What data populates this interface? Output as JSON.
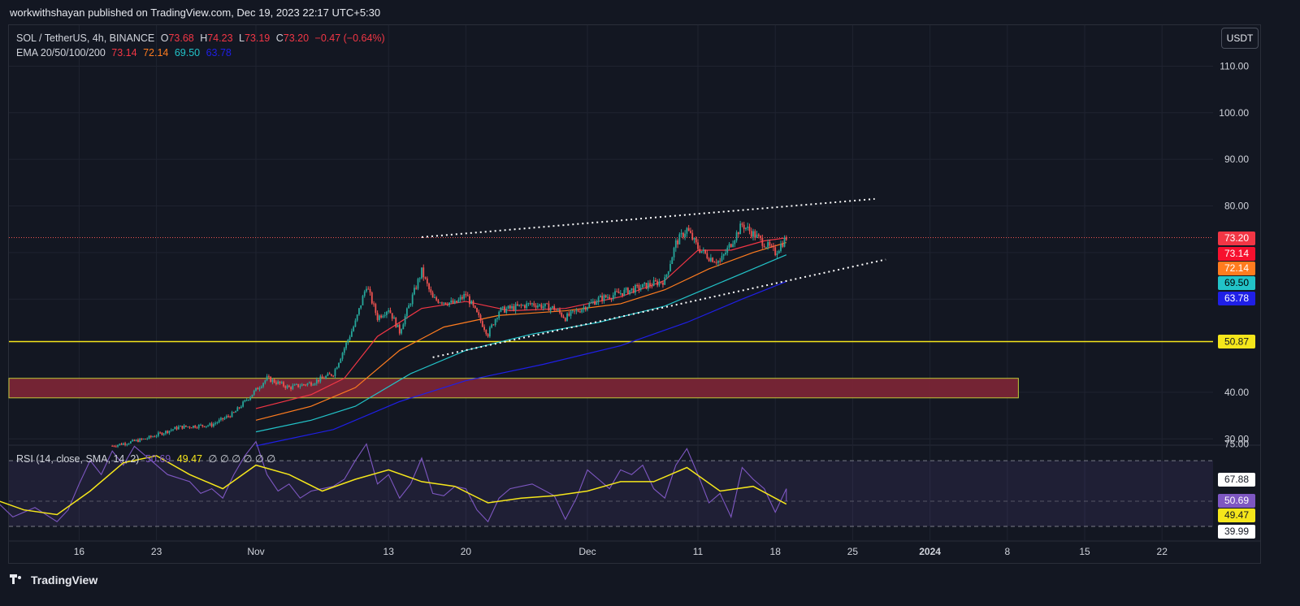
{
  "header": {
    "publisher": "workwithshayan published on TradingView.com, Dec 19, 2023 22:17 UTC+5:30"
  },
  "legend": {
    "symbol": "SOL / TetherUS, 4h, BINANCE",
    "o_label": "O",
    "o_value": "73.68",
    "h_label": "H",
    "h_value": "74.23",
    "l_label": "L",
    "l_value": "73.19",
    "c_label": "C",
    "c_value": "73.20",
    "change": "−0.47 (−0.64%)",
    "ema_label": "EMA 20/50/100/200",
    "ema20": "73.14",
    "ema50": "72.14",
    "ema100": "69.50",
    "ema200": "63.78",
    "rsi_label": "RSI (14, close, SMA, 14, 2)",
    "rsi_value": "50.69",
    "rsi_sma_value": "49.47",
    "rsi_placeholders": "∅ ∅ ∅ ∅ ∅ ∅"
  },
  "toolbar": {
    "currency_button": "USDT"
  },
  "footer": {
    "brand": "TradingView"
  },
  "colors": {
    "background": "#131722",
    "up": "#26a69a",
    "down": "#ef5350",
    "ema20": "#f23645",
    "ema50": "#ff7c1f",
    "ema100": "#22c3c8",
    "ema200": "#1f1fe6",
    "support_line": "#f5e61b",
    "zone_fill": "#7a2536",
    "rsi": "#7e57c2",
    "rsi_sma": "#f5e61b"
  },
  "chart_data": [
    {
      "type": "candlestick",
      "title": "SOL / TetherUS, 4h, BINANCE",
      "ylim": [
        28,
        118
      ],
      "y_ticks": [
        "110.00",
        "100.00",
        "90.00",
        "80.00",
        "40.00",
        "30.00"
      ],
      "x_ticks": [
        "16",
        "23",
        "Nov",
        "13",
        "20",
        "Dec",
        "11",
        "18",
        "25",
        "2024",
        "8",
        "15",
        "22"
      ],
      "last_price": "73.20",
      "ohlc_last": {
        "open": 73.68,
        "high": 74.23,
        "low": 73.19,
        "close": 73.2,
        "change": -0.47,
        "change_pct": -0.64
      },
      "price_path": [
        {
          "date": "2023-10-19",
          "price": 28.5
        },
        {
          "date": "2023-10-22",
          "price": 30.0
        },
        {
          "date": "2023-10-25",
          "price": 32.5
        },
        {
          "date": "2023-10-28",
          "price": 33.0
        },
        {
          "date": "2023-10-30",
          "price": 35.5
        },
        {
          "date": "2023-11-01",
          "price": 40.5
        },
        {
          "date": "2023-11-02",
          "price": 43.0
        },
        {
          "date": "2023-11-04",
          "price": 41.0
        },
        {
          "date": "2023-11-06",
          "price": 42.0
        },
        {
          "date": "2023-11-08",
          "price": 44.0
        },
        {
          "date": "2023-11-10",
          "price": 55.0
        },
        {
          "date": "2023-11-11",
          "price": 63.0
        },
        {
          "date": "2023-11-12",
          "price": 56.0
        },
        {
          "date": "2023-11-13",
          "price": 58.0
        },
        {
          "date": "2023-11-14",
          "price": 53.0
        },
        {
          "date": "2023-11-16",
          "price": 66.0
        },
        {
          "date": "2023-11-17",
          "price": 60.0
        },
        {
          "date": "2023-11-19",
          "price": 59.0
        },
        {
          "date": "2023-11-20",
          "price": 61.0
        },
        {
          "date": "2023-11-22",
          "price": 52.5
        },
        {
          "date": "2023-11-23",
          "price": 57.5
        },
        {
          "date": "2023-11-26",
          "price": 59.0
        },
        {
          "date": "2023-11-28",
          "price": 58.0
        },
        {
          "date": "2023-11-29",
          "price": 56.0
        },
        {
          "date": "2023-12-02",
          "price": 60.0
        },
        {
          "date": "2023-12-05",
          "price": 62.0
        },
        {
          "date": "2023-12-08",
          "price": 64.0
        },
        {
          "date": "2023-12-09",
          "price": 72.0
        },
        {
          "date": "2023-12-10",
          "price": 75.0
        },
        {
          "date": "2023-12-11",
          "price": 71.0
        },
        {
          "date": "2023-12-12",
          "price": 69.0
        },
        {
          "date": "2023-12-13",
          "price": 68.0
        },
        {
          "date": "2023-12-14",
          "price": 72.0
        },
        {
          "date": "2023-12-15",
          "price": 76.0
        },
        {
          "date": "2023-12-16",
          "price": 74.0
        },
        {
          "date": "2023-12-17",
          "price": 72.0
        },
        {
          "date": "2023-12-18",
          "price": 70.0
        },
        {
          "date": "2023-12-19",
          "price": 73.2
        }
      ],
      "ema": [
        {
          "name": "EMA 20",
          "color": "#f23645",
          "points": [
            {
              "date": "2023-11-01",
              "value": 36.5
            },
            {
              "date": "2023-11-06",
              "value": 39.5
            },
            {
              "date": "2023-11-09",
              "value": 43.0
            },
            {
              "date": "2023-11-12",
              "value": 52.0
            },
            {
              "date": "2023-11-16",
              "value": 58.0
            },
            {
              "date": "2023-11-20",
              "value": 59.5
            },
            {
              "date": "2023-11-24",
              "value": 57.5
            },
            {
              "date": "2023-11-29",
              "value": 58.0
            },
            {
              "date": "2023-12-04",
              "value": 60.5
            },
            {
              "date": "2023-12-08",
              "value": 64.0
            },
            {
              "date": "2023-12-11",
              "value": 70.5
            },
            {
              "date": "2023-12-14",
              "value": 70.5
            },
            {
              "date": "2023-12-17",
              "value": 72.5
            },
            {
              "date": "2023-12-19",
              "value": 73.14
            }
          ]
        },
        {
          "name": "EMA 50",
          "color": "#ff7c1f",
          "points": [
            {
              "date": "2023-11-01",
              "value": 34.0
            },
            {
              "date": "2023-11-06",
              "value": 37.0
            },
            {
              "date": "2023-11-10",
              "value": 41.0
            },
            {
              "date": "2023-11-14",
              "value": 49.0
            },
            {
              "date": "2023-11-18",
              "value": 54.0
            },
            {
              "date": "2023-11-23",
              "value": 56.5
            },
            {
              "date": "2023-11-29",
              "value": 57.5
            },
            {
              "date": "2023-12-04",
              "value": 59.0
            },
            {
              "date": "2023-12-08",
              "value": 62.0
            },
            {
              "date": "2023-12-12",
              "value": 66.5
            },
            {
              "date": "2023-12-16",
              "value": 70.0
            },
            {
              "date": "2023-12-19",
              "value": 72.14
            }
          ]
        },
        {
          "name": "EMA 100",
          "color": "#22c3c8",
          "points": [
            {
              "date": "2023-11-01",
              "value": 31.5
            },
            {
              "date": "2023-11-06",
              "value": 34.0
            },
            {
              "date": "2023-11-10",
              "value": 37.0
            },
            {
              "date": "2023-11-15",
              "value": 44.0
            },
            {
              "date": "2023-11-20",
              "value": 49.0
            },
            {
              "date": "2023-11-26",
              "value": 52.5
            },
            {
              "date": "2023-12-02",
              "value": 55.0
            },
            {
              "date": "2023-12-08",
              "value": 58.5
            },
            {
              "date": "2023-12-12",
              "value": 62.5
            },
            {
              "date": "2023-12-16",
              "value": 66.5
            },
            {
              "date": "2023-12-19",
              "value": 69.5
            }
          ]
        },
        {
          "name": "EMA 200",
          "color": "#1f1fe6",
          "points": [
            {
              "date": "2023-11-01",
              "value": 28.5
            },
            {
              "date": "2023-11-08",
              "value": 32.0
            },
            {
              "date": "2023-11-14",
              "value": 38.0
            },
            {
              "date": "2023-11-20",
              "value": 42.5
            },
            {
              "date": "2023-11-27",
              "value": 46.0
            },
            {
              "date": "2023-12-04",
              "value": 50.0
            },
            {
              "date": "2023-12-10",
              "value": 55.0
            },
            {
              "date": "2023-12-15",
              "value": 60.0
            },
            {
              "date": "2023-12-19",
              "value": 63.78
            }
          ]
        }
      ],
      "support_line": {
        "value": 50.87,
        "label": "50.87"
      },
      "demand_zone": {
        "y_from": 38.8,
        "y_to": 43.0,
        "date_from": "2023-10-08",
        "date_to": "2024-01-09"
      },
      "channel": {
        "upper": [
          {
            "date": "2023-11-16",
            "value": 73.3
          },
          {
            "date": "2023-12-27",
            "value": 81.5
          }
        ],
        "lower": [
          {
            "date": "2023-11-17",
            "value": 47.5
          },
          {
            "date": "2023-12-28",
            "value": 68.5
          }
        ]
      },
      "price_labels": [
        {
          "text": "73.20",
          "bg": "#f23645",
          "fg": "#ffffff"
        },
        {
          "text": "73.14",
          "bg": "#f7102e",
          "fg": "#ffffff"
        },
        {
          "text": "72.14",
          "bg": "#ff7c1f",
          "fg": "#ffffff"
        },
        {
          "text": "69.50",
          "bg": "#22c3c8",
          "fg": "#000000"
        },
        {
          "text": "63.78",
          "bg": "#1f1fe6",
          "fg": "#ffffff"
        }
      ]
    },
    {
      "type": "line",
      "title": "RSI (14, close, SMA, 14, 2)",
      "ylim": [
        33,
        83
      ],
      "y_ticks": [
        "75.00"
      ],
      "upper_band": 67.88,
      "middle_band": 50.69,
      "lower_band": 39.99,
      "price_labels": [
        {
          "text": "67.88",
          "bg": "#ffffff",
          "fg": "#131722"
        },
        {
          "text": "50.69",
          "bg": "#7e57c2",
          "fg": "#ffffff"
        },
        {
          "text": "49.47",
          "bg": "#f5e61b",
          "fg": "#131722"
        },
        {
          "text": "39.99",
          "bg": "#ffffff",
          "fg": "#131722"
        }
      ],
      "series": [
        {
          "name": "RSI",
          "color": "#7e57c2",
          "points": [
            {
              "date": "2023-10-08",
              "value": 53
            },
            {
              "date": "2023-10-10",
              "value": 44
            },
            {
              "date": "2023-10-12",
              "value": 48
            },
            {
              "date": "2023-10-14",
              "value": 42
            },
            {
              "date": "2023-10-15",
              "value": 47
            },
            {
              "date": "2023-10-16",
              "value": 58
            },
            {
              "date": "2023-10-17",
              "value": 68
            },
            {
              "date": "2023-10-18",
              "value": 62
            },
            {
              "date": "2023-10-19",
              "value": 72
            },
            {
              "date": "2023-10-20",
              "value": 66
            },
            {
              "date": "2023-10-21",
              "value": 74
            },
            {
              "date": "2023-10-22",
              "value": 70
            },
            {
              "date": "2023-10-23",
              "value": 66
            },
            {
              "date": "2023-10-24",
              "value": 62
            },
            {
              "date": "2023-10-26",
              "value": 59
            },
            {
              "date": "2023-10-27",
              "value": 54
            },
            {
              "date": "2023-10-28",
              "value": 56
            },
            {
              "date": "2023-10-29",
              "value": 52
            },
            {
              "date": "2023-10-30",
              "value": 62
            },
            {
              "date": "2023-10-31",
              "value": 70
            },
            {
              "date": "2023-11-01",
              "value": 76
            },
            {
              "date": "2023-11-02",
              "value": 62
            },
            {
              "date": "2023-11-03",
              "value": 55
            },
            {
              "date": "2023-11-04",
              "value": 58
            },
            {
              "date": "2023-11-05",
              "value": 52
            },
            {
              "date": "2023-11-06",
              "value": 55
            },
            {
              "date": "2023-11-08",
              "value": 57
            },
            {
              "date": "2023-11-09",
              "value": 60
            },
            {
              "date": "2023-11-10",
              "value": 68
            },
            {
              "date": "2023-11-11",
              "value": 75
            },
            {
              "date": "2023-11-12",
              "value": 58
            },
            {
              "date": "2023-11-13",
              "value": 62
            },
            {
              "date": "2023-11-14",
              "value": 52
            },
            {
              "date": "2023-11-15",
              "value": 58
            },
            {
              "date": "2023-11-16",
              "value": 69
            },
            {
              "date": "2023-11-17",
              "value": 54
            },
            {
              "date": "2023-11-18",
              "value": 53
            },
            {
              "date": "2023-11-19",
              "value": 57
            },
            {
              "date": "2023-11-20",
              "value": 56
            },
            {
              "date": "2023-11-21",
              "value": 47
            },
            {
              "date": "2023-11-22",
              "value": 42
            },
            {
              "date": "2023-11-23",
              "value": 52
            },
            {
              "date": "2023-11-24",
              "value": 56
            },
            {
              "date": "2023-11-26",
              "value": 58
            },
            {
              "date": "2023-11-28",
              "value": 53
            },
            {
              "date": "2023-11-29",
              "value": 43
            },
            {
              "date": "2023-11-30",
              "value": 52
            },
            {
              "date": "2023-12-01",
              "value": 64
            },
            {
              "date": "2023-12-02",
              "value": 60
            },
            {
              "date": "2023-12-03",
              "value": 56
            },
            {
              "date": "2023-12-04",
              "value": 64
            },
            {
              "date": "2023-12-05",
              "value": 62
            },
            {
              "date": "2023-12-06",
              "value": 66
            },
            {
              "date": "2023-12-07",
              "value": 56
            },
            {
              "date": "2023-12-08",
              "value": 52
            },
            {
              "date": "2023-12-09",
              "value": 66
            },
            {
              "date": "2023-12-10",
              "value": 73
            },
            {
              "date": "2023-12-11",
              "value": 62
            },
            {
              "date": "2023-12-12",
              "value": 50
            },
            {
              "date": "2023-12-13",
              "value": 54
            },
            {
              "date": "2023-12-14",
              "value": 44
            },
            {
              "date": "2023-12-15",
              "value": 65
            },
            {
              "date": "2023-12-16",
              "value": 60
            },
            {
              "date": "2023-12-17",
              "value": 56
            },
            {
              "date": "2023-12-18",
              "value": 46
            },
            {
              "date": "2023-12-19",
              "value": 56
            },
            {
              "date": "2023-12-19",
              "value": 50.69
            }
          ]
        },
        {
          "name": "RSI SMA",
          "color": "#f5e61b",
          "points": [
            {
              "date": "2023-10-08",
              "value": 52
            },
            {
              "date": "2023-10-11",
              "value": 47
            },
            {
              "date": "2023-10-14",
              "value": 45
            },
            {
              "date": "2023-10-17",
              "value": 55
            },
            {
              "date": "2023-10-20",
              "value": 67
            },
            {
              "date": "2023-10-23",
              "value": 70
            },
            {
              "date": "2023-10-26",
              "value": 62
            },
            {
              "date": "2023-10-29",
              "value": 56
            },
            {
              "date": "2023-11-01",
              "value": 66
            },
            {
              "date": "2023-11-04",
              "value": 62
            },
            {
              "date": "2023-11-07",
              "value": 55
            },
            {
              "date": "2023-11-10",
              "value": 60
            },
            {
              "date": "2023-11-13",
              "value": 64
            },
            {
              "date": "2023-11-16",
              "value": 59
            },
            {
              "date": "2023-11-19",
              "value": 57
            },
            {
              "date": "2023-11-22",
              "value": 50
            },
            {
              "date": "2023-11-25",
              "value": 52
            },
            {
              "date": "2023-11-28",
              "value": 53
            },
            {
              "date": "2023-12-01",
              "value": 55
            },
            {
              "date": "2023-12-04",
              "value": 59
            },
            {
              "date": "2023-12-07",
              "value": 59
            },
            {
              "date": "2023-12-10",
              "value": 65
            },
            {
              "date": "2023-12-13",
              "value": 55
            },
            {
              "date": "2023-12-16",
              "value": 57
            },
            {
              "date": "2023-12-19",
              "value": 49.47
            }
          ]
        }
      ]
    }
  ]
}
